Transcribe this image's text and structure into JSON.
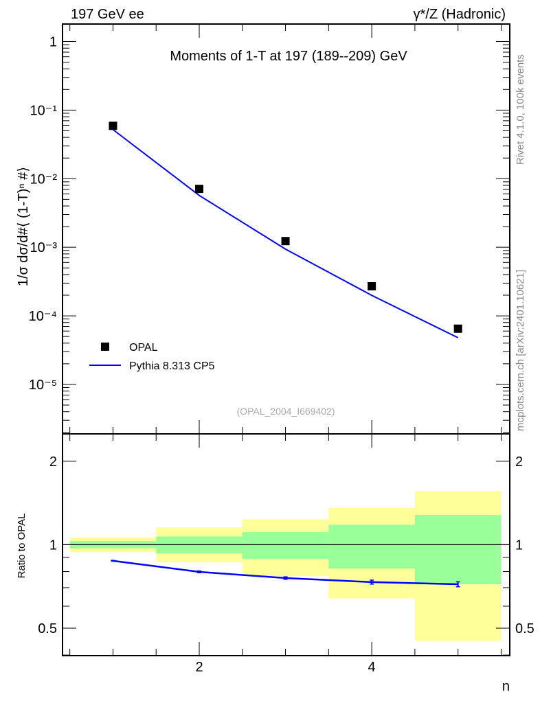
{
  "header": {
    "left": "197 GeV ee",
    "right": "γ*/Z (Hadronic)",
    "side_top": "Rivet 4.1.0,  100k events",
    "side_bottom": "mcplots.cern.ch [arXiv:2401.10621]"
  },
  "chart_data": [
    {
      "type": "scatter",
      "title": "Moments of 1-T at 197 (189--209) GeV",
      "subtitle": "(OPAL_2004_I669402)",
      "ylabel": "1/σ  dσ/d#⟨ (1-T)ⁿ #⟩",
      "xlabel": "n",
      "yscale": "log",
      "xlim": [
        0.415,
        5.6
      ],
      "ylim": [
        1.9e-06,
        1.8
      ],
      "ytick_labels": [
        "1",
        "10⁻¹",
        "10⁻²",
        "10⁻³",
        "10⁻⁴",
        "10⁻⁵"
      ],
      "ytick_values": [
        1,
        0.1,
        0.01,
        0.001,
        0.0001,
        1e-05
      ],
      "legend_position": "bottom-left",
      "series": [
        {
          "name": "OPAL",
          "style": "marker",
          "color": "#000000",
          "x": [
            1,
            2,
            3,
            4,
            5
          ],
          "y": [
            0.059,
            0.0071,
            0.00123,
            0.00027,
            6.5e-05
          ]
        },
        {
          "name": "Pythia 8.313 CP5",
          "style": "line",
          "color": "#0000ff",
          "x": [
            1,
            2,
            3,
            4,
            5
          ],
          "y": [
            0.052,
            0.0057,
            0.00094,
            0.000199,
            4.8e-05
          ]
        }
      ]
    },
    {
      "type": "line",
      "ylabel": "Ratio to OPAL",
      "xlabel": "n",
      "yscale": "log",
      "xlim": [
        0.415,
        5.6
      ],
      "ylim": [
        0.398,
        2.51
      ],
      "xtick_labels": [
        "2",
        "4"
      ],
      "xtick_values": [
        2,
        4
      ],
      "ytick_labels": [
        "2",
        "1",
        "0.5"
      ],
      "ytick_values": [
        2,
        1,
        0.5
      ],
      "bands": {
        "bin_edges": [
          0.5,
          1.5,
          2.5,
          3.5,
          4.5,
          5.5
        ],
        "yellow": {
          "color": "#ffff99",
          "upper": [
            1.06,
            1.155,
            1.235,
            1.36,
            1.56
          ],
          "lower": [
            0.94,
            0.865,
            0.77,
            0.64,
            0.45
          ]
        },
        "green": {
          "color": "#99ff99",
          "upper": [
            1.03,
            1.07,
            1.11,
            1.18,
            1.28
          ],
          "lower": [
            0.97,
            0.93,
            0.89,
            0.82,
            0.72
          ]
        }
      },
      "series": [
        {
          "name": "Pythia 8.313 CP5",
          "color": "#0000ff",
          "x": [
            1,
            2,
            3,
            4,
            5
          ],
          "y": [
            0.875,
            0.798,
            0.758,
            0.733,
            0.72
          ],
          "err": [
            0.003,
            0.006,
            0.008,
            0.012,
            0.015
          ]
        }
      ]
    }
  ]
}
